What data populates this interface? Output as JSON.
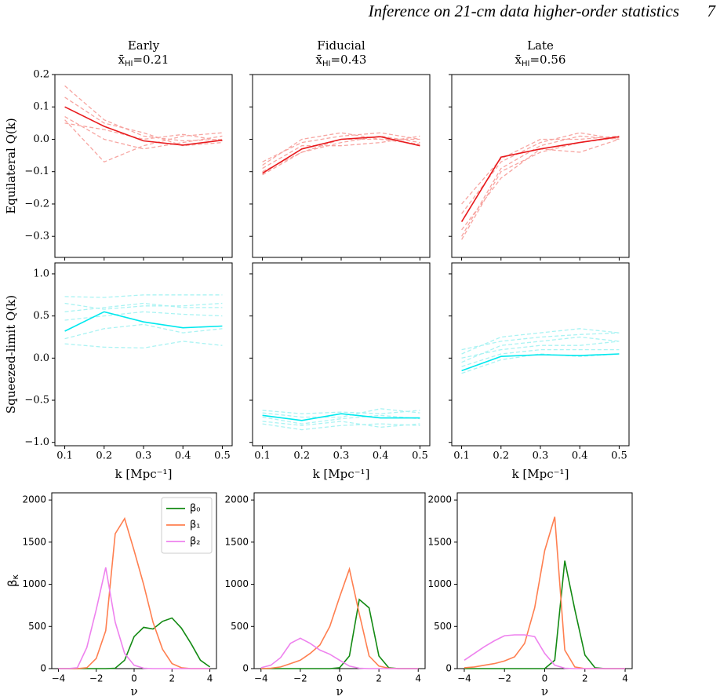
{
  "header": {
    "running_title": "Inference on 21-cm data higher-order statistics",
    "page_number": "7"
  },
  "chart_data": [
    {
      "type": "line",
      "title": "Early",
      "subtitle": [
        "x̄",
        "HI",
        "=0.21"
      ],
      "y_label": "Equilateral Q(k)",
      "x": [
        0.1,
        0.2,
        0.3,
        0.4,
        0.5
      ],
      "xlim": [
        0.075,
        0.525
      ],
      "xticks": [
        0.1,
        0.2,
        0.3,
        0.4,
        0.5
      ],
      "xticklabels": false,
      "ylim": [
        -0.365,
        0.2
      ],
      "yticks": [
        {
          "value": -0.3,
          "label": "−0.3"
        },
        {
          "value": -0.2,
          "label": "−0.2"
        },
        {
          "value": -0.1,
          "label": "−0.1"
        },
        {
          "value": 0,
          "label": "0.0"
        },
        0.1,
        0.2
      ],
      "series": [
        {
          "color": "#f7a5a1",
          "linestyle": "dashed",
          "values": [
            0.165,
            0.06,
            0.01,
            -0.005,
            0.0
          ]
        },
        {
          "color": "#f7a5a1",
          "linestyle": "dashed",
          "values": [
            0.06,
            -0.07,
            -0.02,
            0.01,
            0.02
          ]
        },
        {
          "color": "#f7a5a1",
          "linestyle": "dashed",
          "values": [
            0.07,
            0.0,
            -0.03,
            -0.01,
            0.01
          ]
        },
        {
          "color": "#f7a5a1",
          "linestyle": "dashed",
          "values": [
            0.13,
            0.05,
            0.02,
            -0.02,
            -0.01
          ]
        },
        {
          "color": "#f7a5a1",
          "linestyle": "dashed",
          "values": [
            0.05,
            0.03,
            0.0,
            0.015,
            -0.005
          ]
        },
        {
          "color": "#e8191c",
          "linestyle": "solid",
          "values": [
            0.1,
            0.04,
            -0.005,
            -0.018,
            -0.003
          ]
        }
      ]
    },
    {
      "type": "line",
      "title": "Fiducial",
      "subtitle": [
        "x̄",
        "HI",
        "=0.43"
      ],
      "x": [
        0.1,
        0.2,
        0.3,
        0.4,
        0.5
      ],
      "xlim": [
        0.075,
        0.525
      ],
      "xticks": [
        0.1,
        0.2,
        0.3,
        0.4,
        0.5
      ],
      "xticklabels": false,
      "ylim": [
        -0.365,
        0.2
      ],
      "yticks": [
        -0.3,
        -0.2,
        -0.1,
        0,
        0.1,
        0.2
      ],
      "yticklabels": false,
      "series": [
        {
          "color": "#f7a5a1",
          "linestyle": "dashed",
          "values": [
            -0.08,
            0.0,
            0.02,
            0.0,
            0.0
          ]
        },
        {
          "color": "#f7a5a1",
          "linestyle": "dashed",
          "values": [
            -0.1,
            -0.04,
            -0.01,
            0.01,
            -0.01
          ]
        },
        {
          "color": "#f7a5a1",
          "linestyle": "dashed",
          "values": [
            -0.07,
            -0.01,
            0.01,
            0.02,
            0.0
          ]
        },
        {
          "color": "#f7a5a1",
          "linestyle": "dashed",
          "values": [
            -0.09,
            -0.02,
            -0.02,
            -0.01,
            0.01
          ]
        },
        {
          "color": "#f7a5a1",
          "linestyle": "dashed",
          "values": [
            -0.11,
            -0.04,
            0.0,
            0.0,
            -0.015
          ]
        },
        {
          "color": "#e8191c",
          "linestyle": "solid",
          "values": [
            -0.105,
            -0.03,
            0.0,
            0.008,
            -0.02
          ]
        }
      ]
    },
    {
      "type": "line",
      "title": "Late",
      "subtitle": [
        "x̄",
        "HI",
        "=0.56"
      ],
      "x": [
        0.1,
        0.2,
        0.3,
        0.4,
        0.5
      ],
      "xlim": [
        0.075,
        0.525
      ],
      "xticks": [
        0.1,
        0.2,
        0.3,
        0.4,
        0.5
      ],
      "xticklabels": false,
      "ylim": [
        -0.365,
        0.2
      ],
      "yticks": [
        -0.3,
        -0.2,
        -0.1,
        0,
        0.1,
        0.2
      ],
      "yticklabels": false,
      "series": [
        {
          "color": "#f7a5a1",
          "linestyle": "dashed",
          "values": [
            -0.3,
            -0.09,
            -0.02,
            0.01,
            0.0
          ]
        },
        {
          "color": "#f7a5a1",
          "linestyle": "dashed",
          "values": [
            -0.2,
            -0.06,
            0.0,
            0.0,
            0.01
          ]
        },
        {
          "color": "#f7a5a1",
          "linestyle": "dashed",
          "values": [
            -0.28,
            -0.12,
            -0.03,
            -0.04,
            0.0
          ]
        },
        {
          "color": "#f7a5a1",
          "linestyle": "dashed",
          "values": [
            -0.23,
            -0.07,
            -0.01,
            0.02,
            0.0
          ]
        },
        {
          "color": "#f7a5a1",
          "linestyle": "dashed",
          "values": [
            -0.31,
            -0.1,
            -0.04,
            -0.01,
            0.005
          ]
        },
        {
          "color": "#e8191c",
          "linestyle": "solid",
          "values": [
            -0.255,
            -0.055,
            -0.03,
            -0.01,
            0.008
          ]
        }
      ]
    },
    {
      "type": "line",
      "y_label": "Squeezed-limit Q(k)",
      "x_label": "k [Mpc⁻¹]",
      "x": [
        0.1,
        0.2,
        0.3,
        0.4,
        0.5
      ],
      "xlim": [
        0.075,
        0.525
      ],
      "xticks": [
        0.1,
        0.2,
        0.3,
        0.4,
        0.5
      ],
      "ylim": [
        -1.04,
        1.13
      ],
      "yticks": [
        {
          "value": -1,
          "label": "−1.0"
        },
        {
          "value": -0.5,
          "label": "−0.5"
        },
        {
          "value": 0,
          "label": "0.0"
        },
        0.5,
        {
          "value": 1,
          "label": "1.0"
        }
      ],
      "series": [
        {
          "color": "#aaf3f3",
          "linestyle": "dashed",
          "values": [
            0.73,
            0.72,
            0.75,
            0.75,
            0.75
          ]
        },
        {
          "color": "#aaf3f3",
          "linestyle": "dashed",
          "values": [
            0.17,
            0.13,
            0.12,
            0.2,
            0.15
          ]
        },
        {
          "color": "#aaf3f3",
          "linestyle": "dashed",
          "values": [
            0.23,
            0.35,
            0.4,
            0.3,
            0.35
          ]
        },
        {
          "color": "#aaf3f3",
          "linestyle": "dashed",
          "values": [
            0.55,
            0.6,
            0.65,
            0.6,
            0.6
          ]
        },
        {
          "color": "#aaf3f3",
          "linestyle": "dashed",
          "values": [
            0.45,
            0.5,
            0.55,
            0.52,
            0.5
          ]
        },
        {
          "color": "#aaf3f3",
          "linestyle": "dashed",
          "values": [
            0.65,
            0.58,
            0.62,
            0.62,
            0.65
          ]
        },
        {
          "color": "#00e8ee",
          "linestyle": "solid",
          "values": [
            0.32,
            0.55,
            0.43,
            0.36,
            0.38
          ]
        }
      ]
    },
    {
      "type": "line",
      "x_label": "k [Mpc⁻¹]",
      "x": [
        0.1,
        0.2,
        0.3,
        0.4,
        0.5
      ],
      "xlim": [
        0.075,
        0.525
      ],
      "xticks": [
        0.1,
        0.2,
        0.3,
        0.4,
        0.5
      ],
      "ylim": [
        -1.04,
        1.13
      ],
      "yticks": [
        -1,
        -0.5,
        0,
        0.5,
        1
      ],
      "yticklabels": false,
      "series": [
        {
          "color": "#aaf3f3",
          "linestyle": "dashed",
          "values": [
            -0.65,
            -0.7,
            -0.7,
            -0.6,
            -0.65
          ]
        },
        {
          "color": "#aaf3f3",
          "linestyle": "dashed",
          "values": [
            -0.78,
            -0.85,
            -0.8,
            -0.78,
            -0.8
          ]
        },
        {
          "color": "#aaf3f3",
          "linestyle": "dashed",
          "values": [
            -0.7,
            -0.78,
            -0.72,
            -0.68,
            -0.72
          ]
        },
        {
          "color": "#aaf3f3",
          "linestyle": "dashed",
          "values": [
            -0.75,
            -0.8,
            -0.75,
            -0.82,
            -0.78
          ]
        },
        {
          "color": "#aaf3f3",
          "linestyle": "dashed",
          "values": [
            -0.62,
            -0.66,
            -0.64,
            -0.66,
            -0.62
          ]
        },
        {
          "color": "#00e8ee",
          "linestyle": "solid",
          "values": [
            -0.68,
            -0.74,
            -0.66,
            -0.71,
            -0.71
          ]
        }
      ]
    },
    {
      "type": "line",
      "x_label": "k [Mpc⁻¹]",
      "x": [
        0.1,
        0.2,
        0.3,
        0.4,
        0.5
      ],
      "xlim": [
        0.075,
        0.525
      ],
      "xticks": [
        0.1,
        0.2,
        0.3,
        0.4,
        0.5
      ],
      "ylim": [
        -1.04,
        1.13
      ],
      "yticks": [
        -1,
        -0.5,
        0,
        0.5,
        1
      ],
      "yticklabels": false,
      "series": [
        {
          "color": "#aaf3f3",
          "linestyle": "dashed",
          "values": [
            0.05,
            0.25,
            0.3,
            0.35,
            0.3
          ]
        },
        {
          "color": "#aaf3f3",
          "linestyle": "dashed",
          "values": [
            -0.05,
            0.15,
            0.2,
            0.25,
            0.2
          ]
        },
        {
          "color": "#aaf3f3",
          "linestyle": "dashed",
          "values": [
            0.0,
            0.1,
            0.15,
            0.15,
            0.2
          ]
        },
        {
          "color": "#aaf3f3",
          "linestyle": "dashed",
          "values": [
            -0.1,
            0.05,
            0.1,
            0.1,
            0.1
          ]
        },
        {
          "color": "#aaf3f3",
          "linestyle": "dashed",
          "values": [
            -0.18,
            -0.02,
            0.05,
            0.02,
            0.05
          ]
        },
        {
          "color": "#aaf3f3",
          "linestyle": "dashed",
          "values": [
            0.1,
            0.2,
            0.25,
            0.28,
            0.3
          ]
        },
        {
          "color": "#00e8ee",
          "linestyle": "solid",
          "values": [
            -0.15,
            0.02,
            0.04,
            0.03,
            0.05
          ]
        }
      ]
    },
    {
      "type": "line",
      "y_label": [
        "β",
        "κ"
      ],
      "x_label": "ν",
      "legend": "upper right",
      "x": [
        -4,
        -3.5,
        -3,
        -2.5,
        -2,
        -1.5,
        -1,
        -0.5,
        0,
        0.5,
        1,
        1.5,
        2,
        2.5,
        3,
        3.5,
        4
      ],
      "xlim": [
        -4.35,
        4.35
      ],
      "xticks": [
        {
          "value": -4,
          "label": "−4"
        },
        {
          "value": -2,
          "label": "−2"
        },
        0,
        2,
        4
      ],
      "ylim": [
        0,
        2085
      ],
      "yticks": [
        0,
        500,
        1000,
        1500,
        2000
      ],
      "series": [
        {
          "name": "β₀",
          "color": "#138a13",
          "linestyle": "solid",
          "values": [
            0,
            0,
            0,
            0,
            0,
            0,
            5,
            100,
            380,
            490,
            470,
            560,
            600,
            480,
            300,
            100,
            20
          ]
        },
        {
          "name": "β₁",
          "color": "#ff7f50",
          "linestyle": "solid",
          "values": [
            0,
            0,
            0,
            10,
            120,
            450,
            1600,
            1780,
            1400,
            1000,
            550,
            230,
            60,
            10,
            0,
            0,
            0
          ]
        },
        {
          "name": "β₂",
          "color": "#ee82ee",
          "linestyle": "solid",
          "values": [
            0,
            0,
            10,
            250,
            700,
            1200,
            550,
            180,
            40,
            5,
            0,
            0,
            0,
            0,
            0,
            0,
            0
          ]
        }
      ]
    },
    {
      "type": "line",
      "x_label": "ν",
      "x": [
        -4,
        -3.5,
        -3,
        -2.5,
        -2,
        -1.5,
        -1,
        -0.5,
        0,
        0.5,
        1,
        1.5,
        2,
        2.5,
        3,
        3.5,
        4
      ],
      "xlim": [
        -4.35,
        4.35
      ],
      "xticks": [
        {
          "value": -4,
          "label": "−4"
        },
        {
          "value": -2,
          "label": "−2"
        },
        0,
        2,
        4
      ],
      "ylim": [
        0,
        2085
      ],
      "yticks": [
        0,
        500,
        1000,
        1500,
        2000
      ],
      "series": [
        {
          "color": "#138a13",
          "linestyle": "solid",
          "values": [
            0,
            0,
            0,
            0,
            0,
            0,
            0,
            0,
            10,
            150,
            820,
            720,
            150,
            10,
            0,
            0,
            0
          ]
        },
        {
          "color": "#ff7f50",
          "linestyle": "solid",
          "values": [
            0,
            5,
            20,
            60,
            100,
            180,
            280,
            500,
            850,
            1180,
            650,
            150,
            30,
            5,
            0,
            0,
            0
          ]
        },
        {
          "color": "#ee82ee",
          "linestyle": "solid",
          "values": [
            10,
            40,
            130,
            300,
            360,
            300,
            220,
            170,
            100,
            30,
            5,
            0,
            0,
            0,
            0,
            0,
            0
          ]
        }
      ]
    },
    {
      "type": "line",
      "x_label": "ν",
      "x": [
        -4,
        -3.5,
        -3,
        -2.5,
        -2,
        -1.5,
        -1,
        -0.5,
        0,
        0.5,
        1,
        1.5,
        2,
        2.5,
        3,
        3.5,
        4
      ],
      "xlim": [
        -4.35,
        4.35
      ],
      "xticks": [
        {
          "value": -4,
          "label": "−4"
        },
        {
          "value": -2,
          "label": "−2"
        },
        0,
        2,
        4
      ],
      "ylim": [
        0,
        2085
      ],
      "yticks": [
        0,
        500,
        1000,
        1500,
        2000
      ],
      "series": [
        {
          "color": "#138a13",
          "linestyle": "solid",
          "values": [
            0,
            0,
            0,
            0,
            0,
            0,
            0,
            0,
            0,
            100,
            1280,
            700,
            160,
            10,
            0,
            0,
            0
          ]
        },
        {
          "color": "#ff7f50",
          "linestyle": "solid",
          "values": [
            10,
            20,
            40,
            60,
            90,
            140,
            300,
            720,
            1400,
            1800,
            220,
            20,
            0,
            0,
            0,
            0,
            0
          ]
        },
        {
          "color": "#ee82ee",
          "linestyle": "solid",
          "values": [
            100,
            180,
            260,
            330,
            390,
            400,
            400,
            380,
            180,
            40,
            5,
            0,
            0,
            0,
            0,
            0,
            0
          ]
        }
      ]
    }
  ]
}
